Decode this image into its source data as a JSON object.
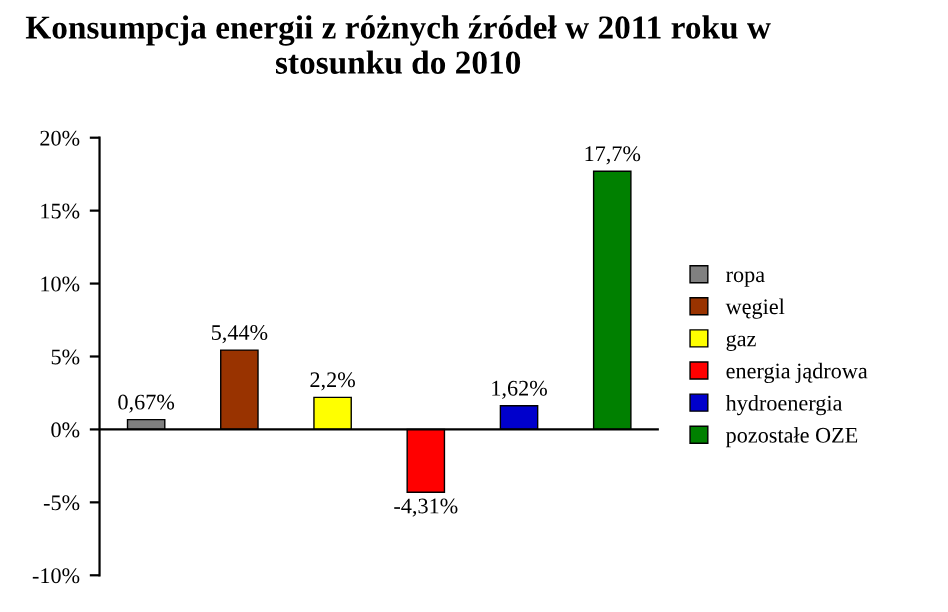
{
  "chart_data": {
    "type": "bar",
    "title": "Konsumpcja energii z różnych źródeł w 2011 roku w stosunku do 2010",
    "categories": [
      null,
      null,
      null,
      null,
      null,
      null
    ],
    "series": [
      {
        "name": "ropa",
        "color": "#808080",
        "values": [
          0.67,
          null,
          null,
          null,
          null,
          null
        ],
        "value_labels": [
          "0,67%",
          null,
          null,
          null,
          null,
          null
        ]
      },
      {
        "name": "węgiel",
        "color": "#993300",
        "values": [
          null,
          5.44,
          null,
          null,
          null,
          null
        ],
        "value_labels": [
          null,
          "5,44%",
          null,
          null,
          null,
          null
        ]
      },
      {
        "name": "gaz",
        "color": "#ffff00",
        "values": [
          null,
          null,
          2.2,
          null,
          null,
          null
        ],
        "value_labels": [
          null,
          null,
          "2,2%",
          null,
          null,
          null
        ]
      },
      {
        "name": "energia jądrowa",
        "color": "#ff0000",
        "values": [
          null,
          null,
          null,
          -4.31,
          null,
          null
        ],
        "value_labels": [
          null,
          null,
          null,
          "-4,31%",
          null,
          null
        ]
      },
      {
        "name": "hydroenergia",
        "color": "#0000cc",
        "values": [
          null,
          null,
          null,
          null,
          1.62,
          null
        ],
        "value_labels": [
          null,
          null,
          null,
          null,
          "1,62%",
          null
        ]
      },
      {
        "name": "pozostałe OZE",
        "color": "#008000",
        "values": [
          null,
          null,
          null,
          null,
          null,
          17.7
        ],
        "value_labels": [
          null,
          null,
          null,
          null,
          null,
          "17,7%"
        ]
      }
    ],
    "ylim": [
      -10,
      20
    ],
    "yticks": [
      {
        "value": -10,
        "label": "-10%"
      },
      {
        "value": -5,
        "label": "-5%"
      },
      {
        "value": 0,
        "label": "0%"
      },
      {
        "value": 5,
        "label": "5%"
      },
      {
        "value": 10,
        "label": "10%"
      },
      {
        "value": 15,
        "label": "15%"
      },
      {
        "value": 20,
        "label": "20%"
      }
    ],
    "legend": "right"
  }
}
